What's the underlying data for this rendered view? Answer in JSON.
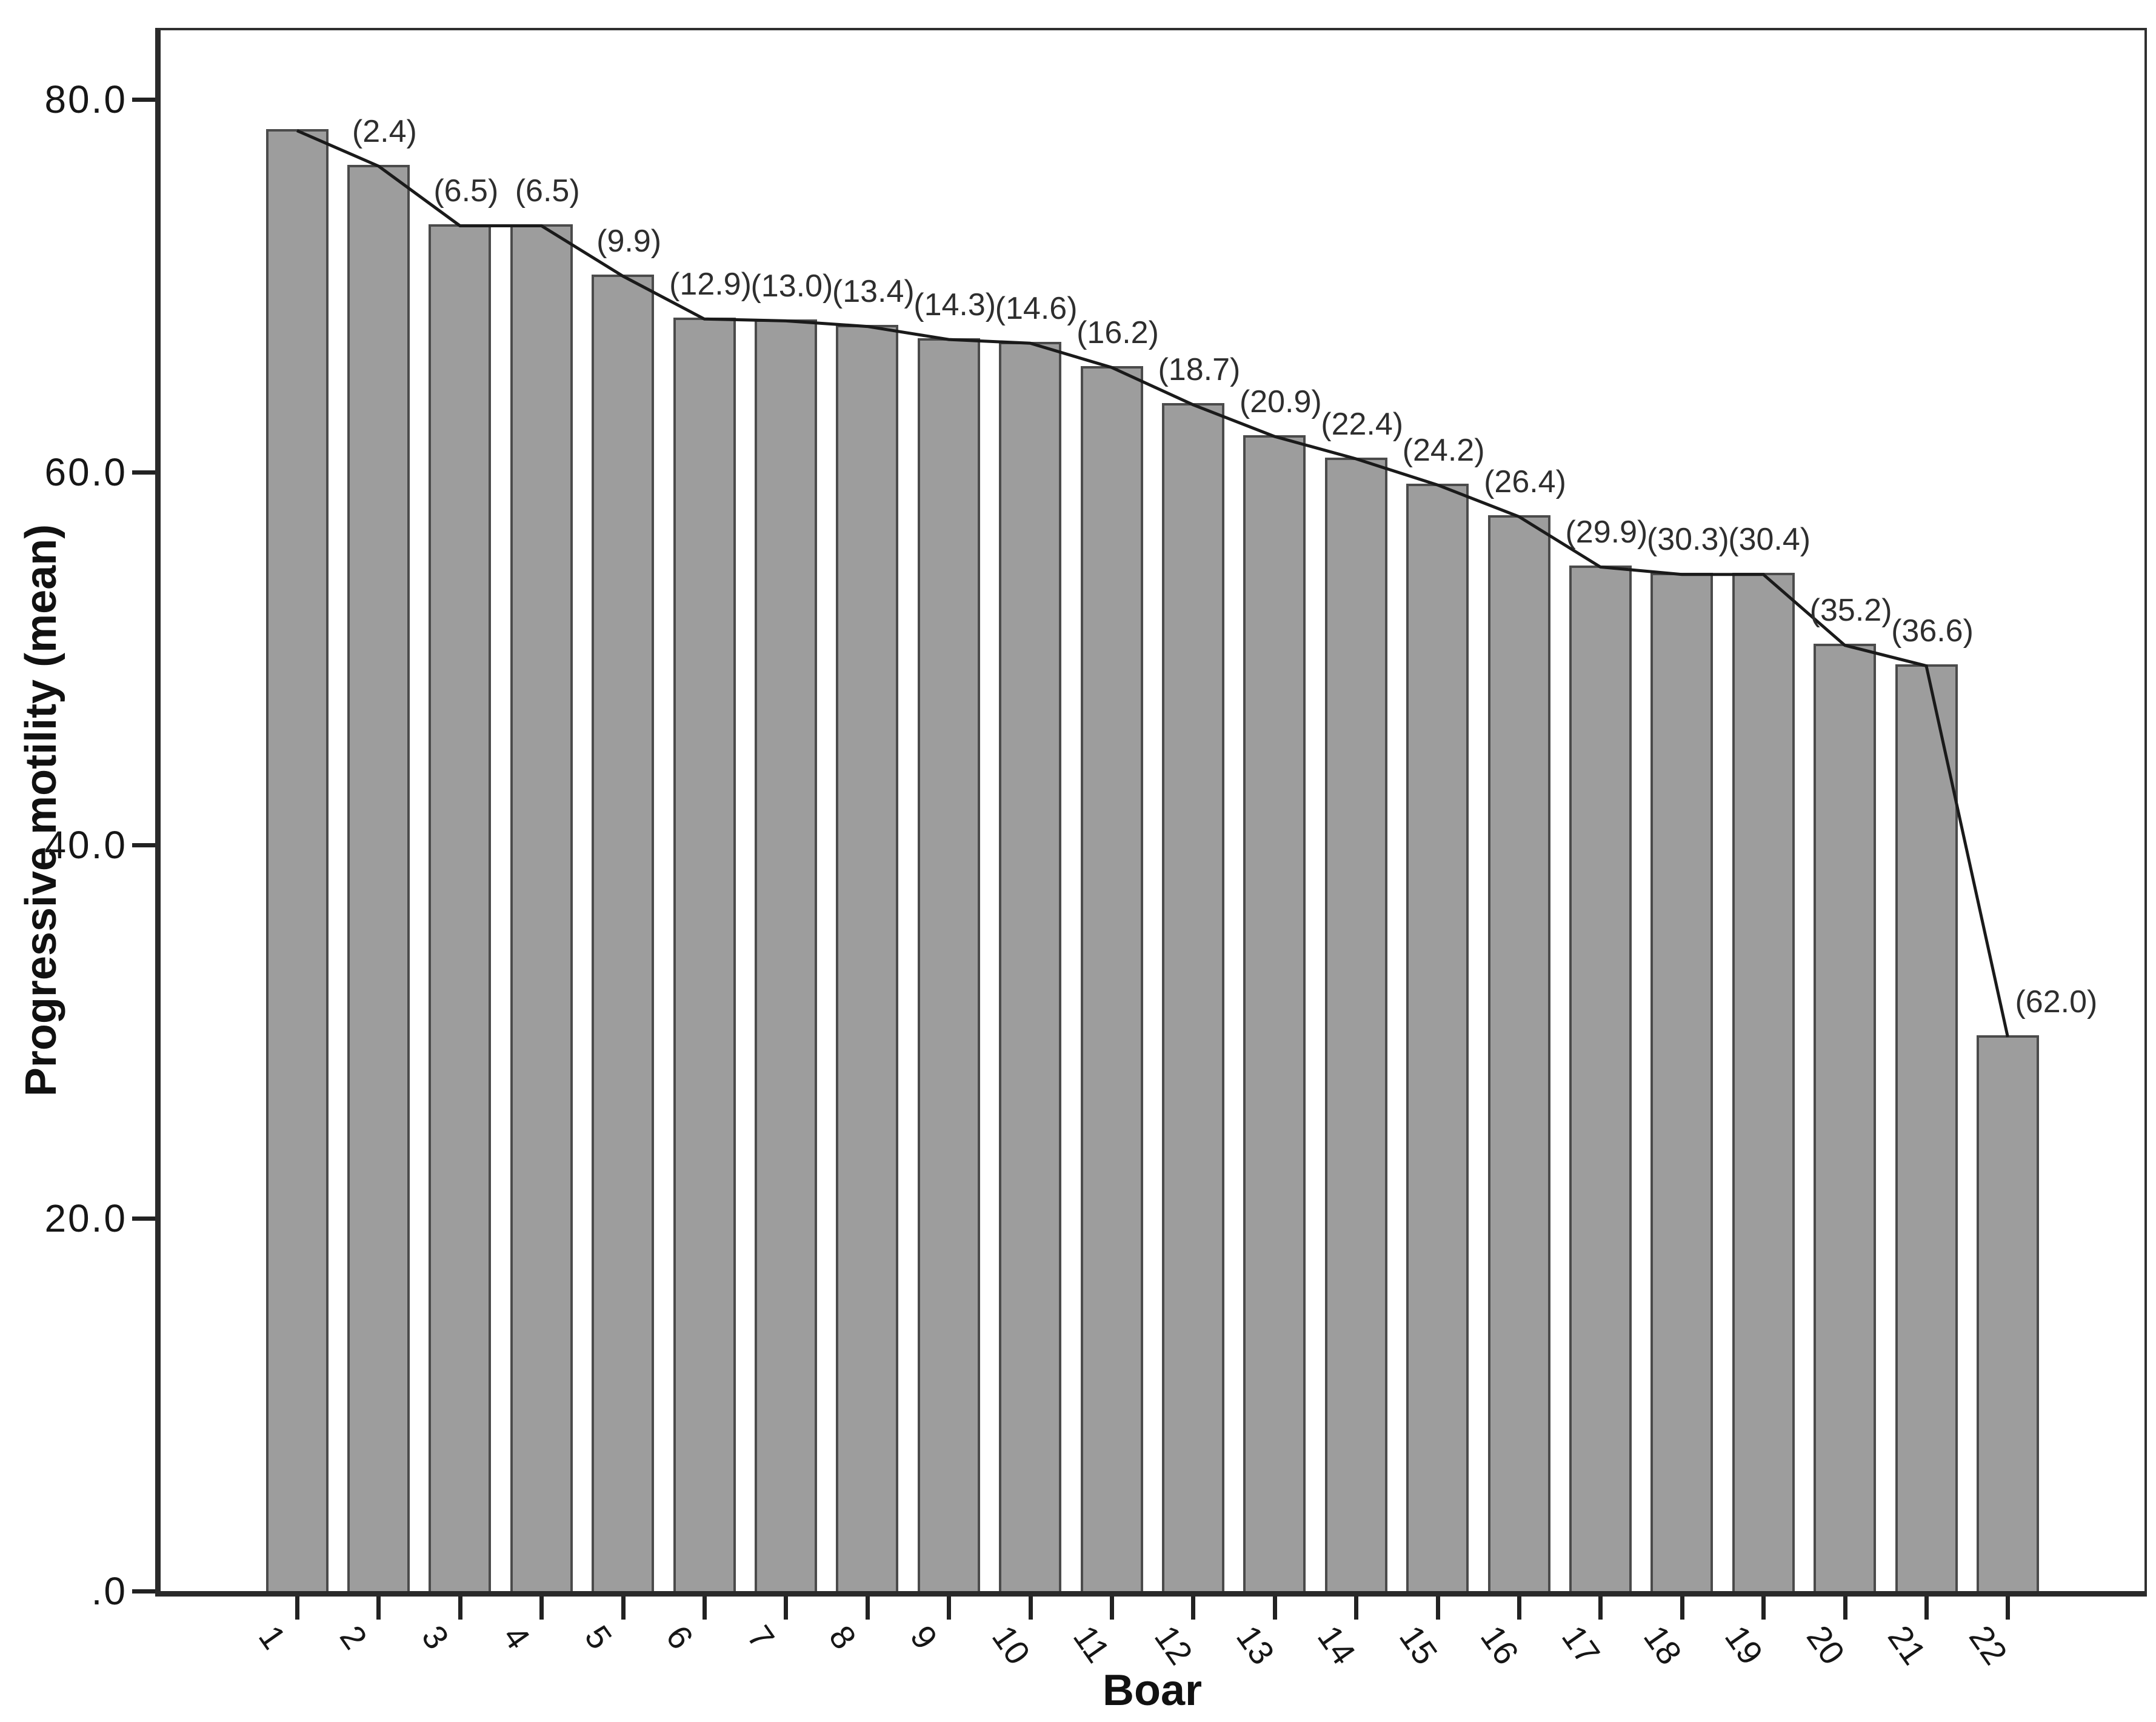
{
  "figure": {
    "background": "#ffffff"
  },
  "chart_data": {
    "type": "bar",
    "title": "",
    "xlabel": "Boar",
    "ylabel": "Progressive motility (mean)",
    "categories": [
      "1",
      "2",
      "3",
      "4",
      "5",
      "6",
      "7",
      "8",
      "9",
      "10",
      "11",
      "12",
      "13",
      "14",
      "15",
      "16",
      "17",
      "18",
      "19",
      "20",
      "21",
      "22"
    ],
    "values": [
      78.4,
      76.5,
      73.3,
      73.3,
      70.6,
      68.3,
      68.2,
      67.9,
      67.2,
      67.0,
      65.7,
      63.7,
      62.0,
      60.8,
      59.4,
      57.7,
      55.0,
      54.6,
      54.6,
      50.8,
      49.7,
      29.8
    ],
    "annotations": [
      "",
      "(2.4)",
      "(6.5)",
      "(6.5)",
      "(9.9)",
      "(12.9)",
      "(13.0)",
      "(13.4)",
      "(14.3)",
      "(14.6)",
      "(16.2)",
      "(18.7)",
      "(20.9)",
      "(22.4)",
      "(24.2)",
      "(26.4)",
      "(29.9)",
      "(30.3)",
      "(30.4)",
      "(35.2)",
      "(36.6)",
      "(62.0)"
    ],
    "y_ticks": [
      {
        "label": ".0",
        "value": 0
      },
      {
        "label": "20.0",
        "value": 20
      },
      {
        "label": "40.0",
        "value": 40
      },
      {
        "label": "60.0",
        "value": 60
      },
      {
        "label": "80.0",
        "value": 80
      }
    ],
    "ylim": [
      0,
      83.7
    ],
    "grid": false,
    "legend": false,
    "overlay_line": true,
    "colors": {
      "bar_fill": "#9d9d9d",
      "bar_border": "#4b4b4b",
      "line": "#1a1a1a",
      "axis": "#2a2a2a",
      "tick_text": "#161616",
      "annotation_text": "#2e2e2e"
    }
  }
}
